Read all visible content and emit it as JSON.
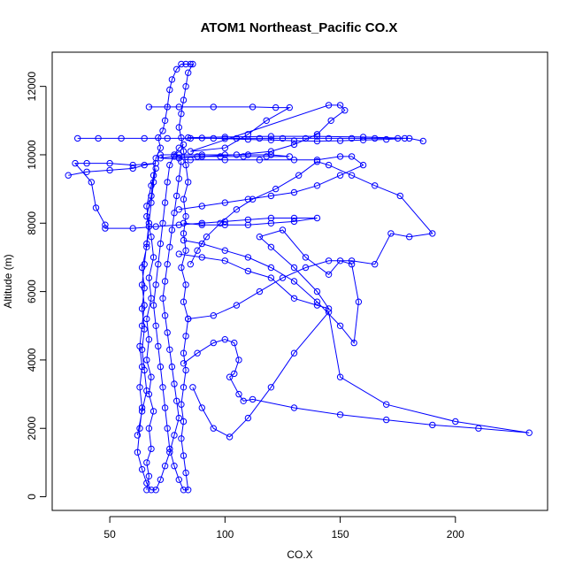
{
  "chart_data": {
    "type": "line",
    "title": "ATOM1 Northeast_Pacific CO.X",
    "xlabel": "CO.X",
    "ylabel": "Altitude (m)",
    "xlim": [
      25,
      240
    ],
    "ylim": [
      -400,
      13000
    ],
    "x_ticks": [
      50,
      100,
      150,
      200
    ],
    "y_ticks": [
      0,
      2000,
      4000,
      6000,
      8000,
      10000,
      12000
    ],
    "grid": false,
    "legend": "none",
    "color": "#0000ff",
    "series": [
      {
        "values": [
          [
            66,
            200
          ],
          [
            67,
            600
          ],
          [
            66,
            1000
          ],
          [
            68,
            1400
          ],
          [
            67,
            2000
          ],
          [
            69,
            2500
          ],
          [
            67,
            3000
          ],
          [
            68,
            3500
          ],
          [
            66,
            4000
          ],
          [
            67,
            4600
          ],
          [
            66,
            5200
          ],
          [
            68,
            5800
          ],
          [
            67,
            6400
          ],
          [
            69,
            7000
          ],
          [
            68,
            7600
          ],
          [
            66,
            8200
          ],
          [
            68,
            8800
          ],
          [
            69,
            9400
          ],
          [
            70,
            9900
          ],
          [
            72,
            10200
          ],
          [
            71,
            10500
          ],
          [
            73,
            10700
          ],
          [
            74,
            11000
          ],
          [
            75,
            11400
          ],
          [
            76,
            11900
          ],
          [
            77,
            12200
          ],
          [
            79,
            12500
          ],
          [
            81,
            12650
          ],
          [
            83,
            12650
          ],
          [
            85,
            12650
          ],
          [
            86,
            12650
          ],
          [
            84,
            12400
          ],
          [
            83,
            12000
          ],
          [
            82,
            11600
          ],
          [
            81,
            11200
          ],
          [
            80,
            10800
          ],
          [
            81,
            10500
          ],
          [
            82,
            10100
          ],
          [
            83,
            9700
          ],
          [
            84,
            9200
          ],
          [
            82,
            8700
          ],
          [
            83,
            8200
          ],
          [
            82,
            7700
          ],
          [
            83,
            7200
          ],
          [
            81,
            6700
          ],
          [
            83,
            6200
          ],
          [
            82,
            5700
          ],
          [
            84,
            5200
          ],
          [
            83,
            4700
          ],
          [
            82,
            4200
          ],
          [
            83,
            3700
          ],
          [
            82,
            3200
          ],
          [
            81,
            2700
          ],
          [
            82,
            2200
          ],
          [
            81,
            1700
          ],
          [
            82,
            1200
          ],
          [
            83,
            700
          ],
          [
            84,
            200
          ],
          [
            82,
            200
          ],
          [
            80,
            500
          ],
          [
            78,
            900
          ],
          [
            76,
            1400
          ],
          [
            75,
            2000
          ],
          [
            74,
            2600
          ],
          [
            73,
            3200
          ],
          [
            72,
            3800
          ],
          [
            71,
            4400
          ],
          [
            70,
            5000
          ],
          [
            69,
            5600
          ],
          [
            70,
            6200
          ],
          [
            71,
            6800
          ],
          [
            72,
            7400
          ],
          [
            73,
            8000
          ],
          [
            74,
            8600
          ],
          [
            75,
            9200
          ],
          [
            76,
            9700
          ],
          [
            78,
            10000
          ],
          [
            80,
            10200
          ],
          [
            82,
            10300
          ]
        ]
      },
      {
        "values": [
          [
            36,
            10480
          ],
          [
            45,
            10480
          ],
          [
            55,
            10480
          ],
          [
            65,
            10480
          ],
          [
            75,
            10480
          ],
          [
            85,
            10480
          ],
          [
            95,
            10480
          ],
          [
            105,
            10480
          ],
          [
            115,
            10480
          ],
          [
            125,
            10480
          ],
          [
            135,
            10480
          ],
          [
            145,
            10480
          ],
          [
            155,
            10480
          ],
          [
            165,
            10480
          ],
          [
            175,
            10480
          ],
          [
            178,
            10480
          ],
          [
            170,
            10450
          ],
          [
            160,
            10430
          ],
          [
            150,
            10410
          ],
          [
            140,
            10400
          ],
          [
            130,
            10410
          ],
          [
            120,
            10430
          ],
          [
            110,
            10450
          ],
          [
            100,
            10470
          ],
          [
            90,
            10490
          ],
          [
            84,
            10500
          ],
          [
            100,
            10520
          ],
          [
            120,
            10540
          ],
          [
            140,
            10540
          ],
          [
            160,
            10520
          ],
          [
            180,
            10480
          ],
          [
            186,
            10400
          ]
        ]
      },
      {
        "values": [
          [
            72,
            10000
          ],
          [
            80,
            10000
          ],
          [
            90,
            10000
          ],
          [
            100,
            10000
          ],
          [
            110,
            10000
          ],
          [
            120,
            10000
          ],
          [
            128,
            9950
          ],
          [
            118,
            9950
          ],
          [
            108,
            9950
          ],
          [
            98,
            9950
          ],
          [
            88,
            9950
          ],
          [
            78,
            9950
          ],
          [
            72,
            9900
          ],
          [
            85,
            9850
          ],
          [
            100,
            9850
          ],
          [
            115,
            9850
          ],
          [
            130,
            9850
          ],
          [
            140,
            9850
          ],
          [
            150,
            9950
          ],
          [
            155,
            9950
          ],
          [
            160,
            9700
          ],
          [
            150,
            9400
          ],
          [
            140,
            9100
          ],
          [
            130,
            8900
          ],
          [
            120,
            8800
          ],
          [
            110,
            8700
          ],
          [
            100,
            8600
          ],
          [
            90,
            8500
          ],
          [
            80,
            8400
          ]
        ]
      },
      {
        "values": [
          [
            32,
            9400
          ],
          [
            40,
            9500
          ],
          [
            50,
            9550
          ],
          [
            60,
            9600
          ],
          [
            65,
            9700
          ],
          [
            70,
            9750
          ],
          [
            60,
            9700
          ],
          [
            50,
            9750
          ],
          [
            40,
            9750
          ],
          [
            35,
            9750
          ],
          [
            42,
            9200
          ],
          [
            44,
            8450
          ],
          [
            48,
            7950
          ],
          [
            48,
            7850
          ],
          [
            60,
            7850
          ],
          [
            70,
            7900
          ],
          [
            80,
            7950
          ],
          [
            90,
            8000
          ],
          [
            100,
            8050
          ],
          [
            110,
            8100
          ],
          [
            120,
            8150
          ],
          [
            130,
            8150
          ],
          [
            140,
            8150
          ],
          [
            130,
            8050
          ],
          [
            120,
            8000
          ],
          [
            110,
            7950
          ],
          [
            100,
            7950
          ],
          [
            90,
            7950
          ],
          [
            82,
            8000
          ]
        ]
      },
      {
        "values": [
          [
            67,
            11400
          ],
          [
            80,
            11400
          ],
          [
            95,
            11400
          ],
          [
            112,
            11400
          ],
          [
            122,
            11380
          ],
          [
            128,
            11380
          ],
          [
            118,
            11000
          ],
          [
            110,
            10600
          ],
          [
            100,
            10200
          ],
          [
            85,
            10100
          ],
          [
            145,
            11450
          ],
          [
            150,
            11450
          ],
          [
            152,
            11300
          ],
          [
            146,
            11000
          ],
          [
            140,
            10600
          ],
          [
            130,
            10300
          ],
          [
            120,
            10100
          ],
          [
            105,
            10000
          ],
          [
            90,
            9950
          ],
          [
            80,
            9900
          ]
        ]
      },
      {
        "values": [
          [
            80,
            7100
          ],
          [
            90,
            7000
          ],
          [
            100,
            6900
          ],
          [
            110,
            6600
          ],
          [
            120,
            6400
          ],
          [
            130,
            5800
          ],
          [
            140,
            5600
          ],
          [
            145,
            5500
          ],
          [
            140,
            6000
          ],
          [
            130,
            6700
          ],
          [
            120,
            7300
          ],
          [
            115,
            7600
          ],
          [
            125,
            7800
          ],
          [
            135,
            7000
          ],
          [
            145,
            6500
          ],
          [
            150,
            6900
          ],
          [
            155,
            6800
          ],
          [
            158,
            5700
          ],
          [
            156,
            4500
          ],
          [
            150,
            5000
          ],
          [
            140,
            5700
          ],
          [
            130,
            6300
          ],
          [
            120,
            6700
          ],
          [
            110,
            7000
          ],
          [
            100,
            7200
          ],
          [
            90,
            7400
          ],
          [
            82,
            7500
          ]
        ]
      },
      {
        "values": [
          [
            84,
            5200
          ],
          [
            95,
            5300
          ],
          [
            105,
            5600
          ],
          [
            115,
            6000
          ],
          [
            125,
            6400
          ],
          [
            135,
            6700
          ],
          [
            145,
            6900
          ],
          [
            155,
            6900
          ],
          [
            165,
            6800
          ],
          [
            172,
            7700
          ],
          [
            180,
            7600
          ],
          [
            190,
            7700
          ],
          [
            176,
            8800
          ],
          [
            165,
            9100
          ],
          [
            155,
            9400
          ],
          [
            145,
            9700
          ],
          [
            140,
            9800
          ],
          [
            132,
            9400
          ],
          [
            122,
            9000
          ],
          [
            112,
            8700
          ],
          [
            105,
            8400
          ],
          [
            98,
            8000
          ],
          [
            92,
            7600
          ],
          [
            88,
            7200
          ],
          [
            85,
            6800
          ]
        ]
      },
      {
        "values": [
          [
            82,
            3900
          ],
          [
            88,
            4200
          ],
          [
            95,
            4500
          ],
          [
            100,
            4600
          ],
          [
            104,
            4500
          ],
          [
            106,
            4000
          ],
          [
            104,
            3600
          ],
          [
            102,
            3500
          ],
          [
            106,
            3000
          ],
          [
            108,
            2800
          ],
          [
            112,
            2850
          ],
          [
            130,
            2600
          ],
          [
            150,
            2400
          ],
          [
            170,
            2250
          ],
          [
            190,
            2100
          ],
          [
            210,
            2000
          ],
          [
            232,
            1870
          ],
          [
            200,
            2200
          ],
          [
            170,
            2700
          ],
          [
            150,
            3500
          ],
          [
            145,
            5400
          ],
          [
            130,
            4200
          ],
          [
            120,
            3200
          ],
          [
            110,
            2300
          ],
          [
            102,
            1750
          ],
          [
            95,
            2000
          ],
          [
            90,
            2600
          ],
          [
            86,
            3200
          ]
        ]
      },
      {
        "values": [
          [
            62,
            1800
          ],
          [
            64,
            2500
          ],
          [
            66,
            3100
          ],
          [
            65,
            3700
          ],
          [
            64,
            4300
          ],
          [
            65,
            4900
          ],
          [
            64,
            5500
          ],
          [
            65,
            6100
          ],
          [
            64,
            6700
          ],
          [
            66,
            7300
          ],
          [
            67,
            7900
          ],
          [
            66,
            8500
          ],
          [
            68,
            9100
          ],
          [
            70,
            9600
          ],
          [
            69,
            9200
          ],
          [
            68,
            8600
          ],
          [
            67,
            8000
          ],
          [
            66,
            7400
          ],
          [
            65,
            6800
          ],
          [
            64,
            6200
          ],
          [
            65,
            5600
          ],
          [
            64,
            5000
          ],
          [
            63,
            4400
          ],
          [
            64,
            3800
          ],
          [
            63,
            3200
          ],
          [
            64,
            2600
          ],
          [
            63,
            2000
          ],
          [
            62,
            1300
          ],
          [
            64,
            800
          ],
          [
            66,
            400
          ],
          [
            68,
            200
          ],
          [
            70,
            200
          ],
          [
            72,
            500
          ],
          [
            74,
            900
          ],
          [
            76,
            1300
          ],
          [
            78,
            1800
          ],
          [
            80,
            2300
          ],
          [
            79,
            2800
          ],
          [
            78,
            3300
          ],
          [
            77,
            3800
          ],
          [
            76,
            4300
          ],
          [
            75,
            4800
          ],
          [
            74,
            5300
          ],
          [
            73,
            5800
          ],
          [
            74,
            6300
          ],
          [
            75,
            6800
          ],
          [
            76,
            7300
          ],
          [
            77,
            7800
          ],
          [
            78,
            8300
          ],
          [
            79,
            8800
          ],
          [
            80,
            9300
          ],
          [
            81,
            9800
          ]
        ]
      }
    ]
  }
}
